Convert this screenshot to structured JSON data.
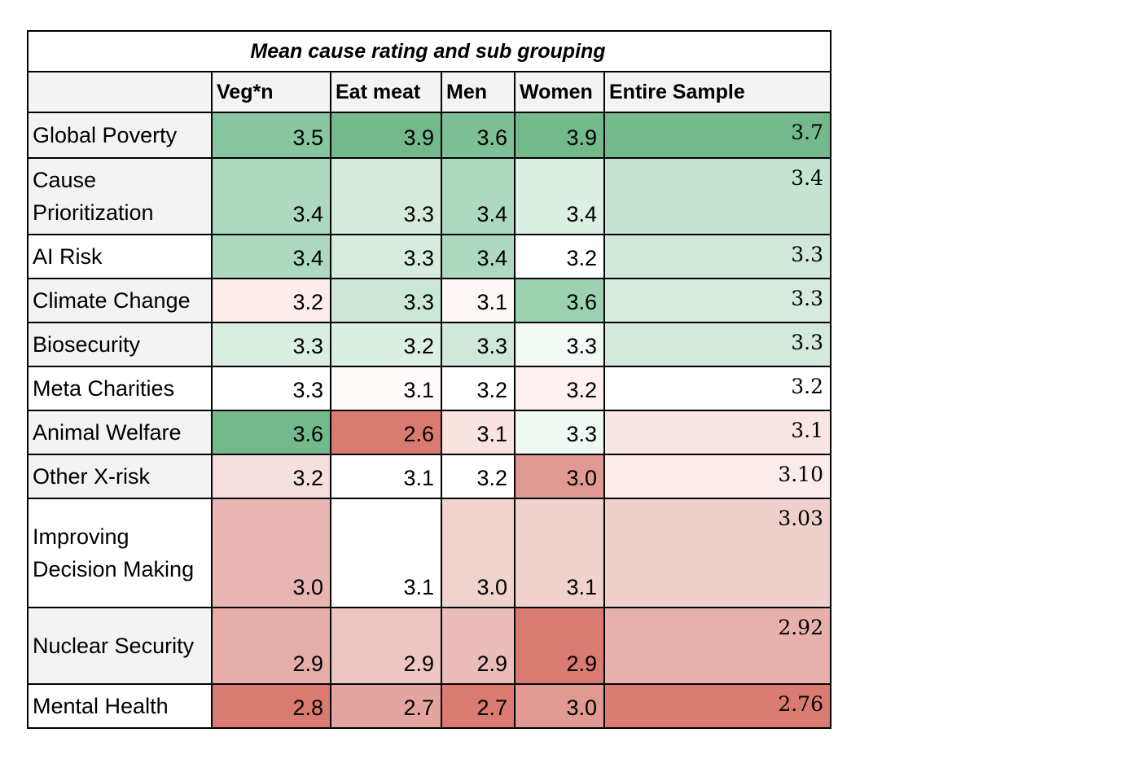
{
  "chart_data": {
    "type": "table",
    "title": "Mean cause rating and sub grouping",
    "columns": [
      "Veg*n",
      "Eat meat",
      "Men",
      "Women",
      "Entire Sample"
    ],
    "rows": [
      {
        "label": "Global Poverty",
        "values": [
          "3.5",
          "3.9",
          "3.6",
          "3.9",
          "3.7"
        ],
        "colors": [
          "#87c6a1",
          "#73b98c",
          "#7dbf96",
          "#73b98c",
          "#73b98c"
        ]
      },
      {
        "label": "Cause Prioritization",
        "values": [
          "3.4",
          "3.3",
          "3.4",
          "3.4",
          "3.4"
        ],
        "colors": [
          "#acd9bf",
          "#d4ebdc",
          "#acd9bf",
          "#dcefe3",
          "#c4e3d1"
        ]
      },
      {
        "label": "AI Risk",
        "values": [
          "3.4",
          "3.3",
          "3.4",
          "3.2",
          "3.3"
        ],
        "colors": [
          "#acd9bf",
          "#d6ecdf",
          "#acd9bf",
          "#ffffff",
          "#d0e8d9"
        ]
      },
      {
        "label": "Climate Change",
        "values": [
          "3.2",
          "3.3",
          "3.1",
          "3.6",
          "3.3"
        ],
        "colors": [
          "#fcecec",
          "#cde7d7",
          "#fdf7f6",
          "#9cd1b2",
          "#d6ebde"
        ]
      },
      {
        "label": "Biosecurity",
        "values": [
          "3.3",
          "3.2",
          "3.3",
          "3.3",
          "3.3"
        ],
        "colors": [
          "#dbeee2",
          "#dcefe3",
          "#cfe8d9",
          "#f2f9f4",
          "#d2e9db"
        ]
      },
      {
        "label": "Meta Charities",
        "values": [
          "3.3",
          "3.1",
          "3.2",
          "3.2",
          "3.2"
        ],
        "colors": [
          "#ffffff",
          "#fefaf9",
          "#ffffff",
          "#fcf1f0",
          "#ffffff"
        ]
      },
      {
        "label": "Animal Welfare",
        "values": [
          "3.6",
          "2.6",
          "3.1",
          "3.3",
          "3.1"
        ],
        "colors": [
          "#73b98c",
          "#da7b72",
          "#f8e3e1",
          "#f0f8f3",
          "#f9e6e4"
        ]
      },
      {
        "label": "Other X-risk",
        "values": [
          "3.2",
          "3.1",
          "3.2",
          "3.0",
          "3.10"
        ],
        "colors": [
          "#f6e0df",
          "#ffffff",
          "#ffffff",
          "#e09a93",
          "#faecea"
        ]
      },
      {
        "label": "Improving Decision Making",
        "values": [
          "3.0",
          "3.1",
          "3.0",
          "3.1",
          "3.03"
        ],
        "colors": [
          "#e8b6b2",
          "#ffffff",
          "#f0d2ce",
          "#f0d1cd",
          "#f0d0cd"
        ]
      },
      {
        "label": "Nuclear Security",
        "values": [
          "2.9",
          "2.9",
          "2.9",
          "2.9",
          "2.92"
        ],
        "colors": [
          "#e6aea9",
          "#edc5c2",
          "#ebbdb9",
          "#da7b72",
          "#e6b0ab"
        ]
      },
      {
        "label": "Mental Health",
        "values": [
          "2.8",
          "2.7",
          "2.7",
          "3.0",
          "2.76"
        ],
        "colors": [
          "#da7b72",
          "#e4a49f",
          "#da7b72",
          "#e09a93",
          "#da7b72"
        ]
      }
    ]
  }
}
